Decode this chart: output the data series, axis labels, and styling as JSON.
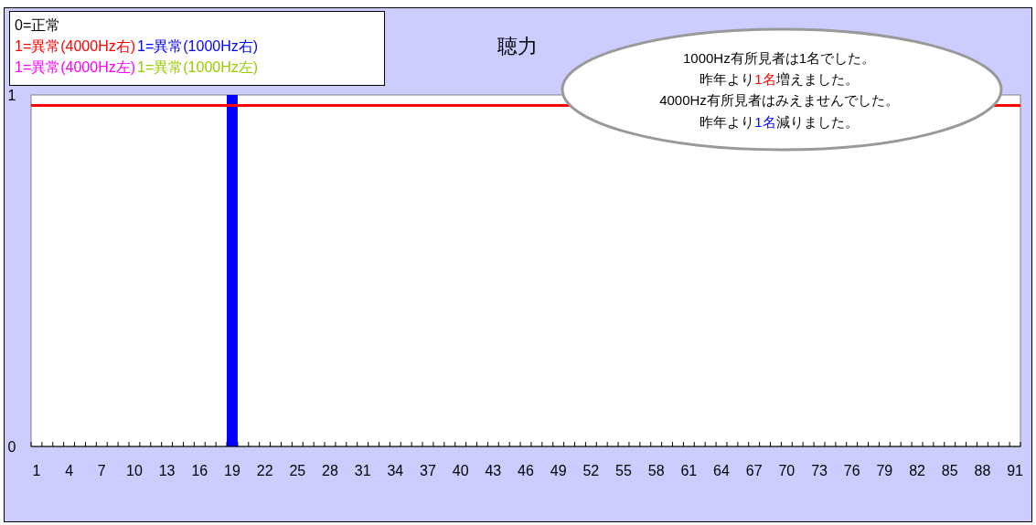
{
  "chart_data": {
    "type": "bar",
    "title": "聴力",
    "legend_title": "0=正常",
    "categories": [
      "1",
      null,
      null,
      "4",
      null,
      null,
      "7",
      null,
      null,
      "10",
      null,
      null,
      "13",
      null,
      null,
      "16",
      null,
      null,
      "19",
      null,
      null,
      "22",
      null,
      null,
      "25",
      null,
      null,
      "28",
      null,
      null,
      "31",
      null,
      null,
      "34",
      null,
      null,
      "37",
      null,
      null,
      "40",
      null,
      null,
      "43",
      null,
      null,
      "46",
      null,
      null,
      "49",
      null,
      null,
      "52",
      null,
      null,
      "55",
      null,
      null,
      "58",
      null,
      null,
      "61",
      null,
      null,
      "64",
      null,
      null,
      "67",
      null,
      null,
      "70",
      null,
      null,
      "73",
      null,
      null,
      "76",
      null,
      null,
      "79",
      null,
      null,
      "82",
      null,
      null,
      "85",
      null,
      null,
      "88",
      null,
      null,
      "91"
    ],
    "series": [
      {
        "name": "1=異常(4000Hz右)",
        "color": "#ff0000",
        "values": [
          0,
          0,
          0,
          0,
          0,
          0,
          0,
          0,
          0,
          0,
          0,
          0,
          0,
          0,
          0,
          0,
          0,
          0,
          0,
          0,
          0,
          0,
          0,
          0,
          0,
          0,
          0,
          0,
          0,
          0,
          0,
          0,
          0,
          0,
          0,
          0,
          0,
          0,
          0,
          0,
          0,
          0,
          0,
          0,
          0,
          0,
          0,
          0,
          0,
          0,
          0,
          0,
          0,
          0,
          0,
          0,
          0,
          0,
          0,
          0,
          0,
          0,
          0,
          0,
          0,
          0,
          0,
          0,
          0,
          0,
          0,
          0,
          0,
          0,
          0,
          0,
          0,
          0,
          0,
          0,
          0,
          0,
          0,
          0,
          0,
          0,
          0,
          0,
          0,
          0,
          0
        ]
      },
      {
        "name": "1=異常(1000Hz右)",
        "color": "#0000ff",
        "values": [
          0,
          0,
          0,
          0,
          0,
          0,
          0,
          0,
          0,
          0,
          0,
          0,
          0,
          0,
          0,
          0,
          0,
          0,
          1,
          0,
          0,
          0,
          0,
          0,
          0,
          0,
          0,
          0,
          0,
          0,
          0,
          0,
          0,
          0,
          0,
          0,
          0,
          0,
          0,
          0,
          0,
          0,
          0,
          0,
          0,
          0,
          0,
          0,
          0,
          0,
          0,
          0,
          0,
          0,
          0,
          0,
          0,
          0,
          0,
          0,
          0,
          0,
          0,
          0,
          0,
          0,
          0,
          0,
          0,
          0,
          0,
          0,
          0,
          0,
          0,
          0,
          0,
          0,
          0,
          0,
          0,
          0,
          0,
          0,
          0,
          0,
          0,
          0,
          0,
          0,
          0
        ]
      },
      {
        "name": "1=異常(4000Hz左)",
        "color": "#ff00ff",
        "values": [
          0,
          0,
          0,
          0,
          0,
          0,
          0,
          0,
          0,
          0,
          0,
          0,
          0,
          0,
          0,
          0,
          0,
          0,
          0,
          0,
          0,
          0,
          0,
          0,
          0,
          0,
          0,
          0,
          0,
          0,
          0,
          0,
          0,
          0,
          0,
          0,
          0,
          0,
          0,
          0,
          0,
          0,
          0,
          0,
          0,
          0,
          0,
          0,
          0,
          0,
          0,
          0,
          0,
          0,
          0,
          0,
          0,
          0,
          0,
          0,
          0,
          0,
          0,
          0,
          0,
          0,
          0,
          0,
          0,
          0,
          0,
          0,
          0,
          0,
          0,
          0,
          0,
          0,
          0,
          0,
          0,
          0,
          0,
          0,
          0,
          0,
          0,
          0,
          0,
          0,
          0
        ]
      },
      {
        "name": "1=異常(1000Hz左)",
        "color": "#99cc00",
        "values": [
          0,
          0,
          0,
          0,
          0,
          0,
          0,
          0,
          0,
          0,
          0,
          0,
          0,
          0,
          0,
          0,
          0,
          0,
          0,
          0,
          0,
          0,
          0,
          0,
          0,
          0,
          0,
          0,
          0,
          0,
          0,
          0,
          0,
          0,
          0,
          0,
          0,
          0,
          0,
          0,
          0,
          0,
          0,
          0,
          0,
          0,
          0,
          0,
          0,
          0,
          0,
          0,
          0,
          0,
          0,
          0,
          0,
          0,
          0,
          0,
          0,
          0,
          0,
          0,
          0,
          0,
          0,
          0,
          0,
          0,
          0,
          0,
          0,
          0,
          0,
          0,
          0,
          0,
          0,
          0,
          0,
          0,
          0,
          0,
          0,
          0,
          0,
          0,
          0,
          0,
          0
        ]
      }
    ],
    "stacked": true,
    "ylim": [
      0,
      1
    ],
    "yticks": [
      0,
      1
    ],
    "ref_lines": [
      {
        "axis": "y",
        "value": 0.97,
        "color": "#ff0000"
      }
    ],
    "legend": "top left",
    "annotations": [
      "1000Hz有所見者は1名でした。",
      "昨年より1名増えました。",
      "4000Hz有所見者はみえませんでした。",
      "昨年より1名減りました。"
    ]
  }
}
